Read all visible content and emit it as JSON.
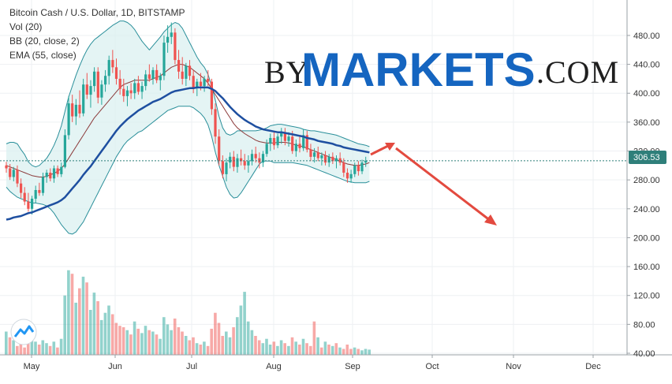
{
  "legend": {
    "title": "Bitcoin Cash / U.S. Dollar, 1D, BITSTAMP",
    "vol": "Vol (20)",
    "bb": "BB (20, close, 2)",
    "ema": "EMA (55, close)"
  },
  "watermark": {
    "by": "BY",
    "markets": "MARKETS",
    "com": ".COM"
  },
  "price_tag": "306.53",
  "colors": {
    "up": "#26a69a",
    "down": "#ef5350",
    "ema": "#1e4fa0",
    "bb_mid": "#8b3a3a",
    "bb_band": "#2a8f9a",
    "bb_fill": "#d8f0ef",
    "arrow": "#e34a3f",
    "price_tag": "#2f7f7a",
    "watermark_blue": "#1565c0"
  },
  "chart_data": {
    "type": "candlestick",
    "ylim": [
      40,
      510
    ],
    "y_ticks": [
      "480.00",
      "440.00",
      "400.00",
      "360.00",
      "320.00",
      "280.00",
      "240.00",
      "200.00",
      "160.00",
      "120.00",
      "80.00",
      "40.00"
    ],
    "x_ticks": [
      "May",
      "Jun",
      "Jul",
      "Aug",
      "Sep",
      "Oct",
      "Nov",
      "Dec"
    ],
    "last_price": 306.53,
    "candles": [
      {
        "o": 300,
        "h": 305,
        "l": 290,
        "c": 296
      },
      {
        "o": 296,
        "h": 302,
        "l": 280,
        "c": 284
      },
      {
        "o": 284,
        "h": 298,
        "l": 278,
        "c": 294
      },
      {
        "o": 294,
        "h": 300,
        "l": 270,
        "c": 275
      },
      {
        "o": 275,
        "h": 282,
        "l": 255,
        "c": 262
      },
      {
        "o": 262,
        "h": 270,
        "l": 245,
        "c": 250
      },
      {
        "o": 250,
        "h": 262,
        "l": 236,
        "c": 240
      },
      {
        "o": 240,
        "h": 258,
        "l": 232,
        "c": 254
      },
      {
        "o": 254,
        "h": 272,
        "l": 248,
        "c": 266
      },
      {
        "o": 266,
        "h": 276,
        "l": 258,
        "c": 262
      },
      {
        "o": 262,
        "h": 290,
        "l": 258,
        "c": 284
      },
      {
        "o": 284,
        "h": 294,
        "l": 276,
        "c": 290
      },
      {
        "o": 290,
        "h": 296,
        "l": 278,
        "c": 282
      },
      {
        "o": 282,
        "h": 300,
        "l": 276,
        "c": 296
      },
      {
        "o": 296,
        "h": 300,
        "l": 284,
        "c": 288
      },
      {
        "o": 288,
        "h": 304,
        "l": 284,
        "c": 298
      },
      {
        "o": 298,
        "h": 350,
        "l": 296,
        "c": 342
      },
      {
        "o": 342,
        "h": 396,
        "l": 336,
        "c": 386
      },
      {
        "o": 386,
        "h": 398,
        "l": 360,
        "c": 368
      },
      {
        "o": 368,
        "h": 392,
        "l": 356,
        "c": 384
      },
      {
        "o": 384,
        "h": 404,
        "l": 366,
        "c": 372
      },
      {
        "o": 372,
        "h": 420,
        "l": 368,
        "c": 412
      },
      {
        "o": 412,
        "h": 428,
        "l": 392,
        "c": 398
      },
      {
        "o": 398,
        "h": 418,
        "l": 380,
        "c": 410
      },
      {
        "o": 410,
        "h": 436,
        "l": 402,
        "c": 430
      },
      {
        "o": 430,
        "h": 436,
        "l": 386,
        "c": 394
      },
      {
        "o": 394,
        "h": 418,
        "l": 384,
        "c": 412
      },
      {
        "o": 412,
        "h": 432,
        "l": 402,
        "c": 424
      },
      {
        "o": 424,
        "h": 452,
        "l": 412,
        "c": 446
      },
      {
        "o": 446,
        "h": 460,
        "l": 428,
        "c": 436
      },
      {
        "o": 436,
        "h": 448,
        "l": 412,
        "c": 420
      },
      {
        "o": 420,
        "h": 432,
        "l": 398,
        "c": 406
      },
      {
        "o": 406,
        "h": 420,
        "l": 388,
        "c": 396
      },
      {
        "o": 396,
        "h": 410,
        "l": 382,
        "c": 404
      },
      {
        "o": 404,
        "h": 414,
        "l": 392,
        "c": 400
      },
      {
        "o": 400,
        "h": 420,
        "l": 392,
        "c": 414
      },
      {
        "o": 414,
        "h": 424,
        "l": 398,
        "c": 402
      },
      {
        "o": 402,
        "h": 416,
        "l": 392,
        "c": 410
      },
      {
        "o": 410,
        "h": 432,
        "l": 404,
        "c": 426
      },
      {
        "o": 426,
        "h": 440,
        "l": 416,
        "c": 420
      },
      {
        "o": 420,
        "h": 436,
        "l": 412,
        "c": 432
      },
      {
        "o": 432,
        "h": 440,
        "l": 414,
        "c": 418
      },
      {
        "o": 418,
        "h": 428,
        "l": 404,
        "c": 424
      },
      {
        "o": 424,
        "h": 480,
        "l": 418,
        "c": 470
      },
      {
        "o": 470,
        "h": 494,
        "l": 456,
        "c": 478
      },
      {
        "o": 478,
        "h": 498,
        "l": 468,
        "c": 484
      },
      {
        "o": 484,
        "h": 490,
        "l": 440,
        "c": 446
      },
      {
        "o": 446,
        "h": 460,
        "l": 420,
        "c": 430
      },
      {
        "o": 430,
        "h": 450,
        "l": 412,
        "c": 420
      },
      {
        "o": 420,
        "h": 442,
        "l": 410,
        "c": 438
      },
      {
        "o": 438,
        "h": 446,
        "l": 418,
        "c": 424
      },
      {
        "o": 424,
        "h": 432,
        "l": 400,
        "c": 408
      },
      {
        "o": 408,
        "h": 420,
        "l": 396,
        "c": 416
      },
      {
        "o": 416,
        "h": 428,
        "l": 404,
        "c": 410
      },
      {
        "o": 410,
        "h": 424,
        "l": 402,
        "c": 420
      },
      {
        "o": 420,
        "h": 432,
        "l": 410,
        "c": 416
      },
      {
        "o": 416,
        "h": 420,
        "l": 370,
        "c": 378
      },
      {
        "o": 378,
        "h": 386,
        "l": 330,
        "c": 340
      },
      {
        "o": 340,
        "h": 350,
        "l": 300,
        "c": 306
      },
      {
        "o": 306,
        "h": 314,
        "l": 282,
        "c": 288
      },
      {
        "o": 288,
        "h": 310,
        "l": 278,
        "c": 304
      },
      {
        "o": 304,
        "h": 318,
        "l": 296,
        "c": 312
      },
      {
        "o": 312,
        "h": 320,
        "l": 292,
        "c": 298
      },
      {
        "o": 298,
        "h": 316,
        "l": 290,
        "c": 310
      },
      {
        "o": 310,
        "h": 322,
        "l": 300,
        "c": 306
      },
      {
        "o": 306,
        "h": 316,
        "l": 294,
        "c": 300
      },
      {
        "o": 300,
        "h": 314,
        "l": 290,
        "c": 306
      },
      {
        "o": 306,
        "h": 322,
        "l": 300,
        "c": 316
      },
      {
        "o": 316,
        "h": 326,
        "l": 304,
        "c": 310
      },
      {
        "o": 310,
        "h": 318,
        "l": 296,
        "c": 304
      },
      {
        "o": 304,
        "h": 320,
        "l": 298,
        "c": 316
      },
      {
        "o": 316,
        "h": 336,
        "l": 312,
        "c": 330
      },
      {
        "o": 330,
        "h": 344,
        "l": 320,
        "c": 338
      },
      {
        "o": 338,
        "h": 346,
        "l": 322,
        "c": 328
      },
      {
        "o": 328,
        "h": 344,
        "l": 324,
        "c": 340
      },
      {
        "o": 340,
        "h": 352,
        "l": 330,
        "c": 346
      },
      {
        "o": 346,
        "h": 352,
        "l": 328,
        "c": 334
      },
      {
        "o": 334,
        "h": 346,
        "l": 326,
        "c": 340
      },
      {
        "o": 340,
        "h": 348,
        "l": 316,
        "c": 320
      },
      {
        "o": 320,
        "h": 336,
        "l": 312,
        "c": 330
      },
      {
        "o": 330,
        "h": 340,
        "l": 318,
        "c": 324
      },
      {
        "o": 324,
        "h": 350,
        "l": 320,
        "c": 342
      },
      {
        "o": 342,
        "h": 348,
        "l": 318,
        "c": 322
      },
      {
        "o": 322,
        "h": 330,
        "l": 306,
        "c": 312
      },
      {
        "o": 312,
        "h": 324,
        "l": 304,
        "c": 318
      },
      {
        "o": 318,
        "h": 326,
        "l": 306,
        "c": 310
      },
      {
        "o": 310,
        "h": 318,
        "l": 300,
        "c": 314
      },
      {
        "o": 314,
        "h": 320,
        "l": 300,
        "c": 304
      },
      {
        "o": 304,
        "h": 316,
        "l": 298,
        "c": 312
      },
      {
        "o": 312,
        "h": 318,
        "l": 302,
        "c": 306
      },
      {
        "o": 306,
        "h": 314,
        "l": 296,
        "c": 310
      },
      {
        "o": 310,
        "h": 318,
        "l": 300,
        "c": 304
      },
      {
        "o": 304,
        "h": 310,
        "l": 284,
        "c": 290
      },
      {
        "o": 290,
        "h": 296,
        "l": 276,
        "c": 282
      },
      {
        "o": 282,
        "h": 294,
        "l": 276,
        "c": 288
      },
      {
        "o": 288,
        "h": 304,
        "l": 284,
        "c": 300
      },
      {
        "o": 300,
        "h": 306,
        "l": 286,
        "c": 292
      },
      {
        "o": 292,
        "h": 308,
        "l": 288,
        "c": 304
      },
      {
        "o": 304,
        "h": 312,
        "l": 298,
        "c": 306.53
      }
    ],
    "volume": [
      {
        "v": 70,
        "up": true
      },
      {
        "v": 62,
        "up": false
      },
      {
        "v": 58,
        "up": true
      },
      {
        "v": 50,
        "up": false
      },
      {
        "v": 54,
        "up": false
      },
      {
        "v": 48,
        "up": false
      },
      {
        "v": 64,
        "up": false
      },
      {
        "v": 60,
        "up": true
      },
      {
        "v": 56,
        "up": true
      },
      {
        "v": 52,
        "up": false
      },
      {
        "v": 58,
        "up": true
      },
      {
        "v": 54,
        "up": true
      },
      {
        "v": 50,
        "up": false
      },
      {
        "v": 56,
        "up": true
      },
      {
        "v": 48,
        "up": false
      },
      {
        "v": 60,
        "up": true
      },
      {
        "v": 120,
        "up": true
      },
      {
        "v": 155,
        "up": true
      },
      {
        "v": 150,
        "up": false
      },
      {
        "v": 110,
        "up": true
      },
      {
        "v": 130,
        "up": false
      },
      {
        "v": 146,
        "up": true
      },
      {
        "v": 138,
        "up": false
      },
      {
        "v": 100,
        "up": true
      },
      {
        "v": 124,
        "up": true
      },
      {
        "v": 112,
        "up": false
      },
      {
        "v": 86,
        "up": true
      },
      {
        "v": 96,
        "up": true
      },
      {
        "v": 106,
        "up": true
      },
      {
        "v": 94,
        "up": false
      },
      {
        "v": 82,
        "up": false
      },
      {
        "v": 78,
        "up": false
      },
      {
        "v": 76,
        "up": false
      },
      {
        "v": 72,
        "up": true
      },
      {
        "v": 66,
        "up": false
      },
      {
        "v": 84,
        "up": true
      },
      {
        "v": 74,
        "up": false
      },
      {
        "v": 68,
        "up": true
      },
      {
        "v": 78,
        "up": true
      },
      {
        "v": 72,
        "up": false
      },
      {
        "v": 70,
        "up": true
      },
      {
        "v": 66,
        "up": false
      },
      {
        "v": 60,
        "up": true
      },
      {
        "v": 90,
        "up": true
      },
      {
        "v": 80,
        "up": true
      },
      {
        "v": 72,
        "up": true
      },
      {
        "v": 88,
        "up": false
      },
      {
        "v": 76,
        "up": false
      },
      {
        "v": 70,
        "up": false
      },
      {
        "v": 64,
        "up": true
      },
      {
        "v": 58,
        "up": false
      },
      {
        "v": 62,
        "up": false
      },
      {
        "v": 54,
        "up": true
      },
      {
        "v": 52,
        "up": false
      },
      {
        "v": 56,
        "up": true
      },
      {
        "v": 50,
        "up": false
      },
      {
        "v": 74,
        "up": false
      },
      {
        "v": 96,
        "up": false
      },
      {
        "v": 82,
        "up": false
      },
      {
        "v": 64,
        "up": false
      },
      {
        "v": 70,
        "up": true
      },
      {
        "v": 62,
        "up": true
      },
      {
        "v": 76,
        "up": false
      },
      {
        "v": 90,
        "up": true
      },
      {
        "v": 106,
        "up": true
      },
      {
        "v": 125,
        "up": true
      },
      {
        "v": 84,
        "up": true
      },
      {
        "v": 72,
        "up": true
      },
      {
        "v": 64,
        "up": false
      },
      {
        "v": 58,
        "up": false
      },
      {
        "v": 54,
        "up": true
      },
      {
        "v": 60,
        "up": true
      },
      {
        "v": 52,
        "up": true
      },
      {
        "v": 56,
        "up": false
      },
      {
        "v": 50,
        "up": true
      },
      {
        "v": 58,
        "up": true
      },
      {
        "v": 54,
        "up": false
      },
      {
        "v": 50,
        "up": true
      },
      {
        "v": 62,
        "up": false
      },
      {
        "v": 56,
        "up": true
      },
      {
        "v": 52,
        "up": false
      },
      {
        "v": 60,
        "up": true
      },
      {
        "v": 54,
        "up": false
      },
      {
        "v": 50,
        "up": false
      },
      {
        "v": 84,
        "up": false
      },
      {
        "v": 62,
        "up": true
      },
      {
        "v": 48,
        "up": false
      },
      {
        "v": 56,
        "up": true
      },
      {
        "v": 52,
        "up": false
      },
      {
        "v": 50,
        "up": true
      },
      {
        "v": 54,
        "up": false
      },
      {
        "v": 48,
        "up": true
      },
      {
        "v": 46,
        "up": false
      },
      {
        "v": 52,
        "up": false
      },
      {
        "v": 46,
        "up": false
      },
      {
        "v": 48,
        "up": true
      },
      {
        "v": 46,
        "up": false
      },
      {
        "v": 44,
        "up": true
      },
      {
        "v": 46,
        "up": true
      },
      {
        "v": 45,
        "up": true
      }
    ],
    "ema": [
      225,
      226,
      228,
      229,
      230,
      232,
      234,
      235,
      237,
      239,
      241,
      243,
      245,
      247,
      249,
      252,
      256,
      262,
      268,
      274,
      280,
      287,
      293,
      299,
      306,
      313,
      320,
      327,
      334,
      341,
      348,
      354,
      359,
      364,
      368,
      372,
      376,
      379,
      382,
      385,
      388,
      390,
      392,
      395,
      398,
      401,
      403,
      404,
      405,
      406,
      407,
      407,
      408,
      408,
      408,
      408,
      406,
      403,
      398,
      393,
      387,
      381,
      376,
      371,
      367,
      363,
      360,
      357,
      354,
      352,
      350,
      349,
      348,
      347,
      346,
      346,
      345,
      344,
      343,
      342,
      341,
      340,
      338,
      337,
      336,
      334,
      333,
      332,
      331,
      330,
      328,
      327,
      325,
      324,
      323,
      322,
      321,
      320,
      319,
      318
    ],
    "bb_upper": [
      330,
      332,
      332,
      330,
      322,
      315,
      305,
      300,
      298,
      300,
      305,
      310,
      318,
      328,
      340,
      355,
      375,
      395,
      410,
      425,
      438,
      450,
      460,
      468,
      474,
      478,
      482,
      486,
      490,
      494,
      497,
      500,
      500,
      498,
      494,
      488,
      480,
      472,
      466,
      460,
      466,
      472,
      478,
      485,
      490,
      495,
      498,
      496,
      490,
      480,
      470,
      460,
      450,
      442,
      436,
      426,
      410,
      390,
      368,
      352,
      344,
      342,
      344,
      348,
      348,
      348,
      348,
      348,
      348,
      349,
      350,
      352,
      355,
      356,
      357,
      357,
      356,
      355,
      354,
      353,
      352,
      350,
      349,
      348,
      348,
      347,
      346,
      345,
      344,
      343,
      342,
      340,
      338,
      336,
      334,
      332,
      330,
      329,
      328,
      326
    ],
    "bb_mid": [
      300,
      298,
      296,
      294,
      292,
      290,
      288,
      286,
      285,
      284,
      284,
      285,
      287,
      289,
      292,
      296,
      302,
      310,
      318,
      326,
      334,
      342,
      350,
      358,
      366,
      372,
      378,
      384,
      390,
      396,
      402,
      408,
      412,
      414,
      416,
      418,
      418,
      418,
      418,
      418,
      420,
      422,
      424,
      428,
      432,
      436,
      438,
      440,
      440,
      438,
      436,
      432,
      428,
      424,
      420,
      414,
      406,
      398,
      390,
      382,
      374,
      366,
      358,
      352,
      348,
      344,
      341,
      338,
      335,
      333,
      332,
      331,
      331,
      331,
      332,
      332,
      332,
      331,
      330,
      328,
      327,
      326,
      324,
      322,
      320,
      318,
      316,
      314,
      312,
      310,
      308,
      306,
      304,
      302,
      301,
      300,
      300,
      301,
      302,
      304
    ],
    "bb_lower": [
      270,
      264,
      260,
      256,
      254,
      252,
      250,
      248,
      248,
      247,
      246,
      244,
      240,
      234,
      226,
      218,
      212,
      206,
      205,
      208,
      215,
      222,
      232,
      242,
      252,
      262,
      272,
      282,
      292,
      302,
      312,
      320,
      328,
      334,
      338,
      342,
      346,
      348,
      352,
      356,
      360,
      364,
      368,
      372,
      376,
      378,
      380,
      382,
      382,
      382,
      382,
      380,
      376,
      372,
      366,
      356,
      340,
      318,
      300,
      285,
      270,
      260,
      255,
      256,
      262,
      270,
      278,
      286,
      294,
      302,
      306,
      306,
      306,
      304,
      304,
      304,
      304,
      304,
      304,
      303,
      302,
      301,
      300,
      298,
      296,
      294,
      292,
      290,
      288,
      286,
      284,
      282,
      280,
      278,
      277,
      276,
      276,
      276,
      276,
      278
    ]
  }
}
